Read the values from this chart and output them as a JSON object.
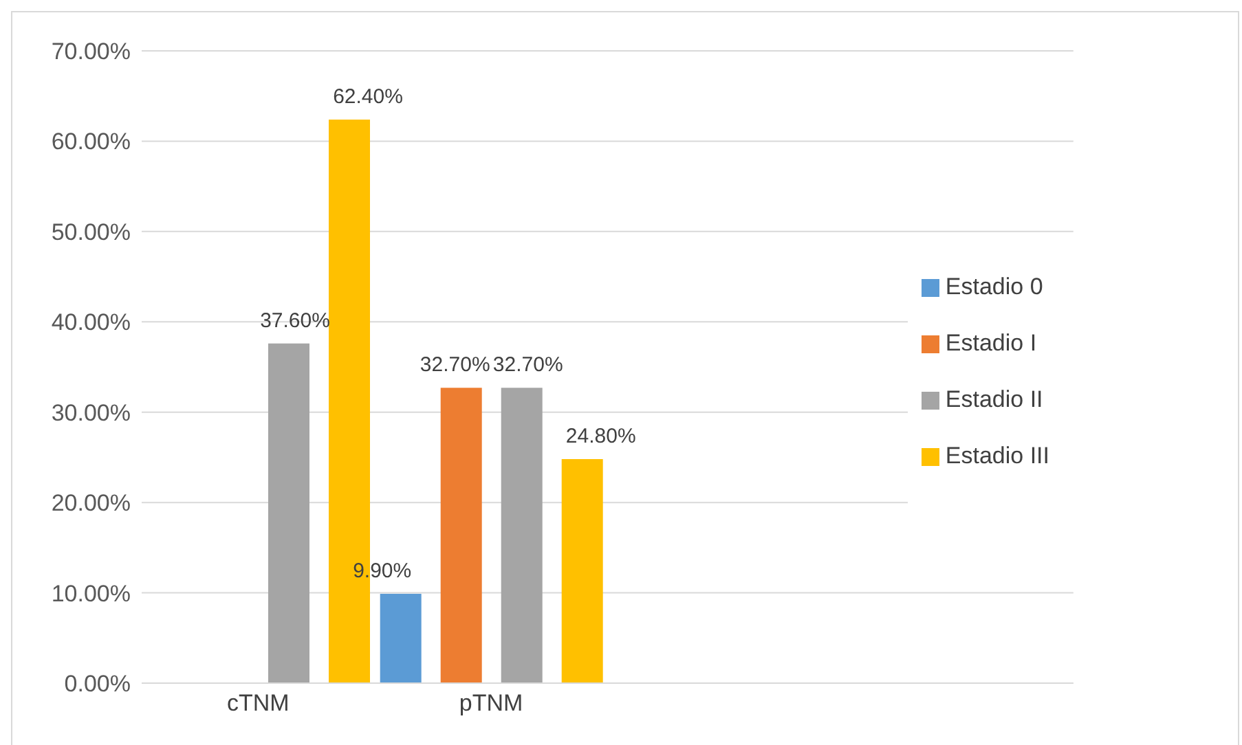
{
  "chart_data": {
    "type": "bar",
    "categories": [
      "cTNM",
      "pTNM",
      null,
      null
    ],
    "series": [
      {
        "name": "Estadio 0",
        "color": "#5b9bd5",
        "values": [
          null,
          9.9,
          null,
          null
        ],
        "value_labels": [
          null,
          "9.90%",
          null,
          null
        ]
      },
      {
        "name": "Estadio I",
        "color": "#ed7d31",
        "values": [
          null,
          32.7,
          null,
          null
        ],
        "value_labels": [
          null,
          "32.70%",
          null,
          null
        ]
      },
      {
        "name": "Estadio II",
        "color": "#a5a5a5",
        "values": [
          37.6,
          32.7,
          null,
          null
        ],
        "value_labels": [
          "37.60%",
          "32.70%",
          null,
          null
        ]
      },
      {
        "name": "Estadio III",
        "color": "#ffc000",
        "values": [
          62.4,
          24.8,
          null,
          null
        ],
        "value_labels": [
          "62.40%",
          "24.80%",
          null,
          null
        ]
      }
    ],
    "ylim": [
      0,
      70
    ],
    "yticks": [
      {
        "value": 0,
        "label": "0.00%"
      },
      {
        "value": 10,
        "label": "10.00%"
      },
      {
        "value": 20,
        "label": "20.00%"
      },
      {
        "value": 30,
        "label": "30.00%"
      },
      {
        "value": 40,
        "label": "40.00%"
      },
      {
        "value": 50,
        "label": "50.00%"
      },
      {
        "value": 60,
        "label": "60.00%"
      },
      {
        "value": 70,
        "label": "70.00%"
      }
    ],
    "grid": "y",
    "legend": "right"
  }
}
